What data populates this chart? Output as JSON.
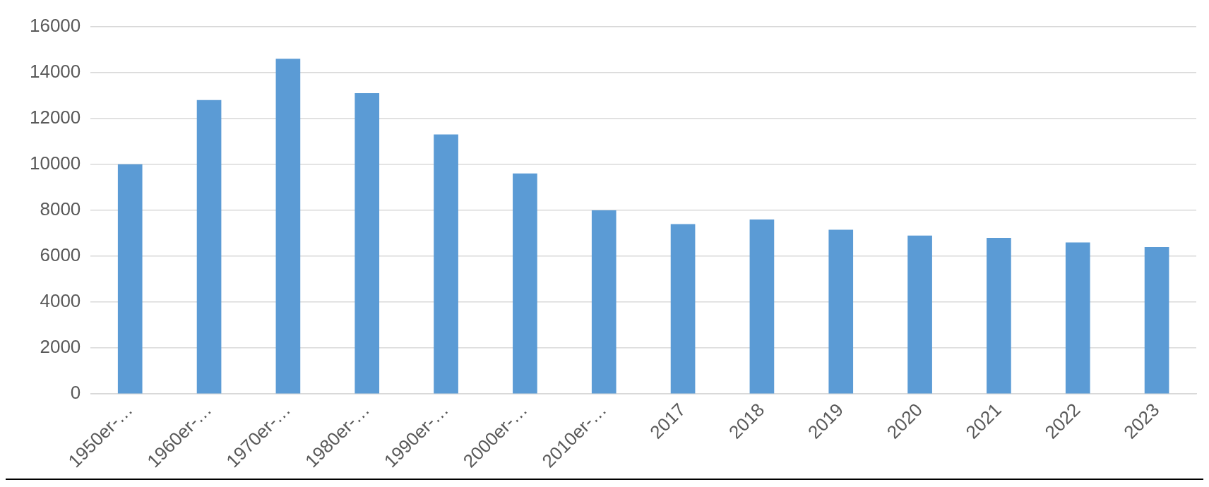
{
  "chart_data": {
    "type": "bar",
    "categories": [
      "1950er-…",
      "1960er-…",
      "1970er-…",
      "1980er-…",
      "1990er-…",
      "2000er-…",
      "2010er-…",
      "2017",
      "2018",
      "2019",
      "2020",
      "2021",
      "2022",
      "2023"
    ],
    "values": [
      10000,
      12800,
      14600,
      13100,
      11300,
      9600,
      8000,
      7400,
      7600,
      7150,
      6900,
      6800,
      6600,
      6400
    ],
    "color": "#5b9bd5",
    "ylim": [
      0,
      16000
    ],
    "yticks": [
      0,
      2000,
      4000,
      6000,
      8000,
      10000,
      12000,
      14000,
      16000
    ],
    "grid": "y",
    "legend": false
  }
}
